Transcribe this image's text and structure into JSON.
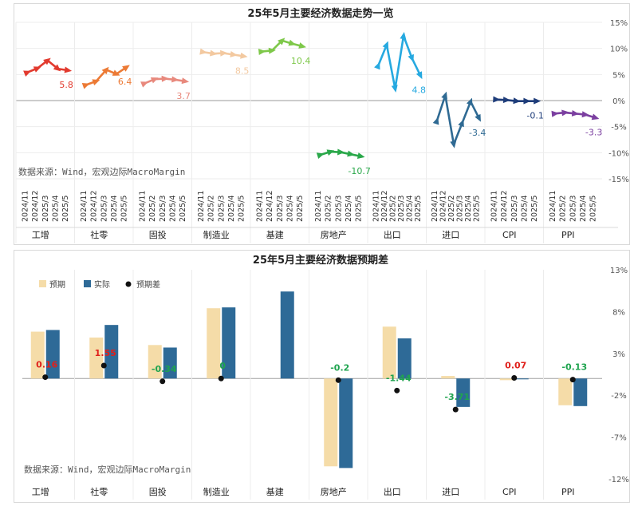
{
  "chart_data": [
    {
      "type": "line",
      "title": "25年5月主要经济数据走势一览",
      "source_note": "数据来源：Wind，宏观边际MacroMargin",
      "y_tick_labels": [
        "15%",
        "10%",
        "5%",
        "0%",
        "-5%",
        "-10%",
        "-15%"
      ],
      "ylim": [
        -15,
        15
      ],
      "grid": true,
      "groups": [
        {
          "name": "工增",
          "color": "#e23a2e",
          "x": [
            "2024/11",
            "2024/12",
            "2025/3",
            "2025/4",
            "2025/5"
          ],
          "values": [
            5.4,
            6.2,
            7.7,
            6.1,
            5.8
          ],
          "last_label": "5.8"
        },
        {
          "name": "社零",
          "color": "#ec7a35",
          "x": [
            "2024/11",
            "2024/12",
            "2025/3",
            "2025/4",
            "2025/5"
          ],
          "values": [
            3.0,
            3.7,
            5.9,
            5.1,
            6.4
          ],
          "last_label": "6.4"
        },
        {
          "name": "固投",
          "color": "#e8897d",
          "x": [
            "2024/11",
            "2025/2",
            "2025/3",
            "2025/4",
            "2025/5"
          ],
          "values": [
            3.3,
            4.1,
            4.2,
            4.0,
            3.7
          ],
          "last_label": "3.7"
        },
        {
          "name": "制造业",
          "color": "#f3c9a0",
          "x": [
            "2024/11",
            "2025/2",
            "2025/3",
            "2025/4",
            "2025/5"
          ],
          "values": [
            9.3,
            9.0,
            9.1,
            8.8,
            8.5
          ],
          "last_label": "8.5"
        },
        {
          "name": "基建",
          "color": "#7ec84a",
          "x": [
            "2024/11",
            "2024/12",
            "2025/3",
            "2025/4",
            "2025/5"
          ],
          "values": [
            9.4,
            9.6,
            11.5,
            10.9,
            10.4
          ],
          "last_label": "10.4"
        },
        {
          "name": "房地产",
          "color": "#2aa84a",
          "x": [
            "2024/11",
            "2025/2",
            "2025/3",
            "2025/4",
            "2025/5"
          ],
          "values": [
            -10.4,
            -9.8,
            -9.9,
            -10.3,
            -10.7
          ],
          "last_label": "-10.7"
        },
        {
          "name": "出口",
          "color": "#26a9e0",
          "x": [
            "2024/11",
            "2024/12",
            "2025/2",
            "2025/3",
            "2025/4",
            "2025/5"
          ],
          "values": [
            6.7,
            10.7,
            2.3,
            12.4,
            8.1,
            4.8
          ],
          "last_label": "4.8"
        },
        {
          "name": "进口",
          "color": "#2f6a93",
          "x": [
            "2024/11",
            "2024/12",
            "2025/2",
            "2025/3",
            "2025/4",
            "2025/5"
          ],
          "values": [
            -3.9,
            1.0,
            -8.4,
            -4.3,
            -0.2,
            -3.4
          ],
          "last_label": "-3.4"
        },
        {
          "name": "CPI",
          "color": "#1f3d7a",
          "x": [
            "2024/11",
            "2024/12",
            "2025/3",
            "2025/4",
            "2025/5"
          ],
          "values": [
            0.2,
            0.1,
            -0.1,
            -0.1,
            -0.1
          ],
          "last_label": "-0.1"
        },
        {
          "name": "PPI",
          "color": "#7b3fa0",
          "x": [
            "2024/11",
            "2025/2",
            "2025/3",
            "2025/4",
            "2025/5"
          ],
          "values": [
            -2.5,
            -2.3,
            -2.5,
            -2.7,
            -3.3
          ],
          "last_label": "-3.3"
        }
      ]
    },
    {
      "type": "bar",
      "title": "25年5月主要经济数据预期差",
      "source_note": "数据来源：Wind，宏观边际MacroMargin",
      "legend": [
        "预期",
        "实际",
        "预期差"
      ],
      "legend_position": "top-left",
      "categories": [
        "工增",
        "社零",
        "固投",
        "制造业",
        "基建",
        "房地产",
        "出口",
        "进口",
        "CPI",
        "PPI"
      ],
      "series": [
        {
          "name": "预期",
          "color": "#f5dca8",
          "values": [
            5.6,
            4.9,
            4.0,
            8.4,
            null,
            -10.5,
            6.2,
            0.3,
            -0.2,
            -3.2
          ]
        },
        {
          "name": "实际",
          "color": "#2e6a97",
          "values": [
            5.8,
            6.4,
            3.7,
            8.5,
            10.4,
            -10.7,
            4.8,
            -3.4,
            -0.1,
            -3.3
          ]
        },
        {
          "name": "预期差",
          "color": "#111111",
          "values": [
            0.16,
            1.55,
            -0.34,
            0,
            null,
            -0.2,
            -1.44,
            -3.71,
            0.07,
            -0.13
          ]
        }
      ],
      "diff_labels": [
        "0.16",
        "1.55",
        "-0.34",
        "0",
        "",
        "-0.2",
        "-1.44",
        "-3.71",
        "0.07",
        "-0.13"
      ],
      "y_tick_labels": [
        "13%",
        "8%",
        "3%",
        "-2%",
        "-7%",
        "-12%"
      ],
      "ylim": [
        -12,
        13
      ],
      "grid": true
    }
  ]
}
